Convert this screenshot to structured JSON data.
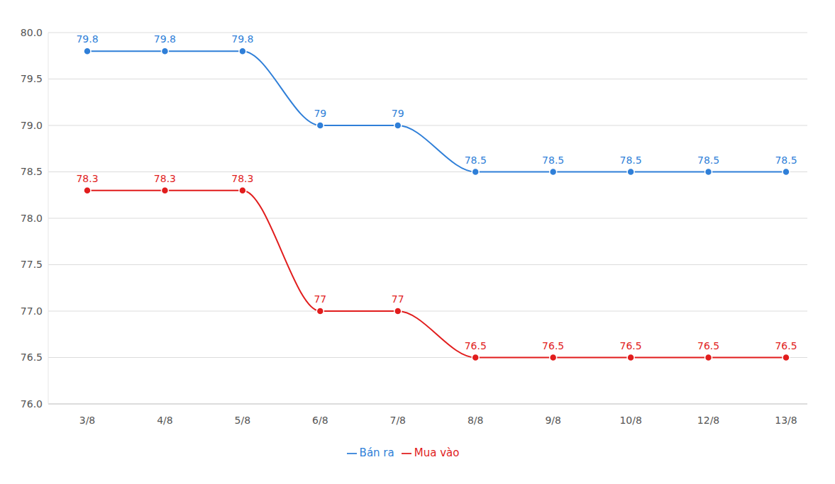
{
  "chart_data": {
    "type": "line",
    "categories": [
      "3/8",
      "4/8",
      "5/8",
      "6/8",
      "7/8",
      "8/8",
      "9/8",
      "10/8",
      "12/8",
      "13/8"
    ],
    "series": [
      {
        "name": "Mua vào",
        "color": "#e11d1d",
        "values": [
          78.3,
          78.3,
          78.3,
          77,
          77,
          76.5,
          76.5,
          76.5,
          76.5,
          76.5
        ],
        "marker": "circle"
      },
      {
        "name": "Bán ra",
        "color": "#2f7fd8",
        "values": [
          79.8,
          79.8,
          79.8,
          79,
          79,
          78.5,
          78.5,
          78.5,
          78.5,
          78.5
        ],
        "marker": "circle"
      }
    ],
    "ylim": [
      76,
      80
    ],
    "yticks": [
      {
        "value": 76,
        "label": "76.0"
      },
      76.5,
      {
        "value": 77,
        "label": "77.0"
      },
      77.5,
      {
        "value": 78,
        "label": "78.0"
      },
      78.5,
      {
        "value": 79,
        "label": "79.0"
      },
      79.5,
      {
        "value": 80,
        "label": "80.0"
      }
    ],
    "grid": true,
    "data_labels": true,
    "legend": "bottom"
  }
}
